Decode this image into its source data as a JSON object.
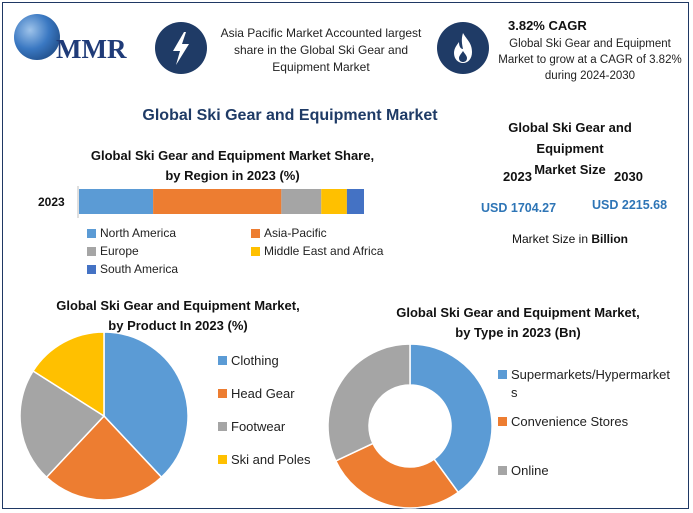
{
  "logo": {
    "text": "MMR"
  },
  "header": {
    "note1": "Asia Pacific Market Accounted largest share in the Global Ski Gear and Equipment Market",
    "cagr_title": "3.82% CAGR",
    "cagr_text": "Global Ski Gear and Equipment Market to grow at a CAGR of 3.82% during 2024-2030",
    "icon1": "lightning-icon",
    "icon2": "flame-icon"
  },
  "main_title": "Global Ski Gear and Equipment Market",
  "market_size": {
    "title_line1": "Global Ski Gear and Equipment",
    "title_line2": "Market Size",
    "year1": "2023",
    "year2": "2030",
    "value1": "USD 1704.27",
    "value2": "USD 2215.68",
    "unit_prefix": "Market Size in ",
    "unit_bold": "Billion"
  },
  "colors": {
    "blue": "#5b9bd5",
    "orange": "#ed7d31",
    "gray": "#a5a5a5",
    "yellow": "#ffc000",
    "darkblue": "#4472c4"
  },
  "chart_data": [
    {
      "type": "bar",
      "stacked": true,
      "orientation": "horizontal",
      "title_line1": "Global Ski Gear and Equipment Market Share,",
      "title_line2": "by Region in 2023 (%)",
      "categories": [
        "2023"
      ],
      "series": [
        {
          "name": "North America",
          "values": [
            26
          ],
          "color": "#5b9bd5"
        },
        {
          "name": "Asia-Pacific",
          "values": [
            45
          ],
          "color": "#ed7d31"
        },
        {
          "name": "Europe",
          "values": [
            14
          ],
          "color": "#a5a5a5"
        },
        {
          "name": "Middle East and Africa",
          "values": [
            9
          ],
          "color": "#ffc000"
        },
        {
          "name": "South America",
          "values": [
            6
          ],
          "color": "#4472c4"
        }
      ],
      "legend": "bottom"
    },
    {
      "type": "pie",
      "title_line1": "Global Ski Gear and Equipment Market,",
      "title_line2": "by Product In 2023 (%)",
      "slices": [
        {
          "label": "Clothing",
          "value": 38,
          "color": "#5b9bd5"
        },
        {
          "label": "Head Gear",
          "value": 24,
          "color": "#ed7d31"
        },
        {
          "label": "Footwear",
          "value": 22,
          "color": "#a5a5a5"
        },
        {
          "label": "Ski and Poles",
          "value": 16,
          "color": "#ffc000"
        }
      ],
      "legend": "right"
    },
    {
      "type": "pie",
      "donut": true,
      "title_line1": "Global Ski Gear and Equipment Market,",
      "title_line2": "by Type in 2023 (Bn)",
      "slices": [
        {
          "label_line1": "Supermarkets/Hypermarket",
          "label_line2": "s",
          "value": 40,
          "color": "#5b9bd5"
        },
        {
          "label_line1": "Convenience Stores",
          "label_line2": "",
          "value": 28,
          "color": "#ed7d31"
        },
        {
          "label_line1": "Online",
          "label_line2": "",
          "value": 32,
          "color": "#a5a5a5"
        }
      ],
      "legend": "right"
    }
  ]
}
